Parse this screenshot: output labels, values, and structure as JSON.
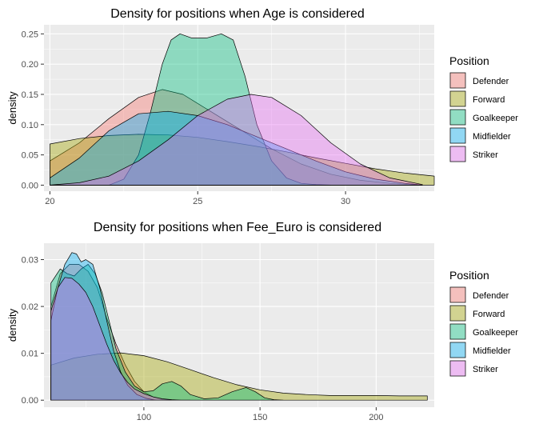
{
  "chart_data": [
    {
      "type": "area",
      "title": "Density for positions when Age is considered",
      "xlabel": "",
      "ylabel": "density",
      "xlim": [
        19.8,
        33.0
      ],
      "ylim": [
        -0.01,
        0.265
      ],
      "xticks": [
        20,
        25,
        30
      ],
      "yticks": [
        0.0,
        0.05,
        0.1,
        0.15,
        0.2,
        0.25
      ],
      "xtick_labels": [
        "20",
        "25",
        "30"
      ],
      "ytick_labels": [
        "0.00",
        "0.05",
        "0.10",
        "0.15",
        "0.20",
        "0.25"
      ],
      "legend": {
        "title": "Position",
        "placement": "right",
        "items": [
          "Defender",
          "Forward",
          "Goalkeeper",
          "Midfielder",
          "Striker"
        ]
      },
      "series": [
        {
          "name": "Defender",
          "color": "#F8766D",
          "x": [
            20,
            21,
            22,
            23,
            23.8,
            24.5,
            25.5,
            26.5,
            27.5,
            28.5,
            29.5,
            30.5,
            31.5,
            32.6
          ],
          "y": [
            0.04,
            0.07,
            0.11,
            0.145,
            0.158,
            0.15,
            0.12,
            0.09,
            0.06,
            0.035,
            0.018,
            0.008,
            0.003,
            0.0
          ]
        },
        {
          "name": "Forward",
          "color": "#A3A500",
          "x": [
            20,
            21,
            22,
            23,
            24,
            25,
            26,
            27,
            28,
            29,
            30,
            31,
            32,
            33
          ],
          "y": [
            0.068,
            0.077,
            0.082,
            0.084,
            0.083,
            0.079,
            0.072,
            0.064,
            0.055,
            0.045,
            0.036,
            0.027,
            0.02,
            0.015
          ]
        },
        {
          "name": "Goalkeeper",
          "color": "#00BF7D",
          "x": [
            22,
            22.5,
            23,
            23.4,
            23.8,
            24.1,
            24.4,
            24.8,
            25.3,
            25.8,
            26.2,
            26.6,
            27,
            27.5,
            28,
            28.5,
            29,
            29.5
          ],
          "y": [
            0.0,
            0.01,
            0.05,
            0.12,
            0.2,
            0.24,
            0.25,
            0.243,
            0.243,
            0.25,
            0.24,
            0.18,
            0.1,
            0.04,
            0.012,
            0.003,
            0.001,
            0.0
          ]
        },
        {
          "name": "Midfielder",
          "color": "#00B0F6",
          "x": [
            20,
            21,
            22,
            23,
            24,
            25,
            26,
            27,
            28,
            29,
            30,
            31,
            32,
            32.6
          ],
          "y": [
            0.012,
            0.045,
            0.09,
            0.118,
            0.122,
            0.115,
            0.1,
            0.08,
            0.06,
            0.04,
            0.022,
            0.01,
            0.003,
            0.0
          ]
        },
        {
          "name": "Striker",
          "color": "#E76BF3",
          "x": [
            20,
            21,
            22,
            23,
            24,
            25,
            26,
            26.8,
            27.5,
            28.5,
            29.5,
            30.5,
            31.5,
            32.6
          ],
          "y": [
            0.0,
            0.004,
            0.015,
            0.04,
            0.075,
            0.115,
            0.142,
            0.15,
            0.145,
            0.115,
            0.07,
            0.035,
            0.012,
            0.001
          ]
        }
      ]
    },
    {
      "type": "area",
      "title": "Density for positions when Fee_Euro is considered",
      "xlabel": "",
      "ylabel": "density",
      "xlim": [
        57,
        225
      ],
      "ylim": [
        -0.0015,
        0.0335
      ],
      "xticks": [
        100,
        150,
        200
      ],
      "yticks": [
        0.0,
        0.01,
        0.02,
        0.03
      ],
      "xtick_labels": [
        "100",
        "150",
        "200"
      ],
      "ytick_labels": [
        "0.00",
        "0.01",
        "0.02",
        "0.03"
      ],
      "legend": {
        "title": "Position",
        "placement": "right",
        "items": [
          "Defender",
          "Forward",
          "Goalkeeper",
          "Midfielder",
          "Striker"
        ]
      },
      "series": [
        {
          "name": "Defender",
          "color": "#F8766D",
          "x": [
            60,
            64,
            68,
            72,
            76,
            80,
            84,
            88,
            92,
            96,
            100,
            104,
            108,
            113
          ],
          "y": [
            0.02,
            0.027,
            0.029,
            0.029,
            0.0275,
            0.024,
            0.0175,
            0.012,
            0.0075,
            0.004,
            0.0018,
            0.0007,
            0.0002,
            0.0
          ]
        },
        {
          "name": "Forward",
          "color": "#A3A500",
          "x": [
            60,
            70,
            80,
            90,
            100,
            110,
            120,
            130,
            140,
            150,
            160,
            170,
            180,
            190,
            200,
            210,
            222
          ],
          "y": [
            0.0075,
            0.009,
            0.0098,
            0.0101,
            0.0095,
            0.0082,
            0.0065,
            0.0048,
            0.0033,
            0.0022,
            0.0015,
            0.0012,
            0.001,
            0.001,
            0.001,
            0.0009,
            0.0009
          ]
        },
        {
          "name": "Goalkeeper",
          "color": "#00BF7D",
          "x": [
            60,
            64,
            67,
            70,
            73,
            76,
            79,
            82,
            85,
            88,
            92,
            96,
            100,
            104,
            108,
            112,
            116,
            120,
            126,
            132,
            138,
            144,
            148,
            152,
            156,
            160
          ],
          "y": [
            0.025,
            0.028,
            0.027,
            0.0265,
            0.028,
            0.029,
            0.027,
            0.023,
            0.017,
            0.011,
            0.006,
            0.003,
            0.0018,
            0.002,
            0.0035,
            0.004,
            0.003,
            0.0012,
            0.0003,
            0.0005,
            0.0018,
            0.0027,
            0.0018,
            0.0005,
            0.0001,
            0.0
          ]
        },
        {
          "name": "Midfielder",
          "color": "#00B0F6",
          "x": [
            60,
            63,
            66,
            69,
            71,
            73,
            75,
            78,
            81,
            84,
            87,
            90,
            93,
            97,
            101,
            105
          ],
          "y": [
            0.017,
            0.024,
            0.029,
            0.0315,
            0.0312,
            0.0295,
            0.03,
            0.029,
            0.024,
            0.017,
            0.0105,
            0.006,
            0.0032,
            0.0012,
            0.0004,
            0.0
          ]
        },
        {
          "name": "Striker",
          "color": "#E76BF3",
          "x": [
            60,
            63,
            66,
            69,
            72,
            75,
            78,
            81,
            84,
            87,
            90,
            93,
            96,
            100,
            104,
            108,
            112,
            116,
            120
          ],
          "y": [
            0.019,
            0.024,
            0.0262,
            0.026,
            0.0248,
            0.023,
            0.02,
            0.016,
            0.012,
            0.0085,
            0.0058,
            0.0038,
            0.0024,
            0.0014,
            0.0007,
            0.0003,
            0.0001,
            0.0,
            0.0
          ]
        }
      ]
    }
  ]
}
